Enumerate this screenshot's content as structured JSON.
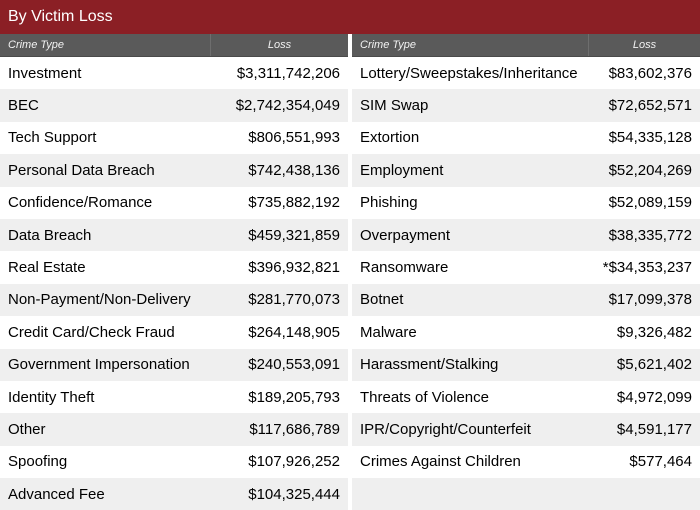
{
  "title": "By Victim Loss",
  "headers": {
    "crime_type": "Crime Type",
    "loss": "Loss"
  },
  "left_table": [
    {
      "type": "Investment",
      "loss": "$3,311,742,206"
    },
    {
      "type": "BEC",
      "loss": "$2,742,354,049"
    },
    {
      "type": "Tech Support",
      "loss": "$806,551,993"
    },
    {
      "type": "Personal Data Breach",
      "loss": "$742,438,136"
    },
    {
      "type": "Confidence/Romance",
      "loss": "$735,882,192"
    },
    {
      "type": "Data Breach",
      "loss": "$459,321,859"
    },
    {
      "type": "Real Estate",
      "loss": "$396,932,821"
    },
    {
      "type": "Non-Payment/Non-Delivery",
      "loss": "$281,770,073"
    },
    {
      "type": "Credit Card/Check Fraud",
      "loss": "$264,148,905"
    },
    {
      "type": "Government Impersonation",
      "loss": "$240,553,091"
    },
    {
      "type": "Identity Theft",
      "loss": "$189,205,793"
    },
    {
      "type": "Other",
      "loss": "$117,686,789"
    },
    {
      "type": "Spoofing",
      "loss": "$107,926,252"
    },
    {
      "type": "Advanced Fee",
      "loss": "$104,325,444"
    }
  ],
  "right_table": [
    {
      "type": "Lottery/Sweepstakes/Inheritance",
      "loss": "$83,602,376"
    },
    {
      "type": "SIM Swap",
      "loss": "$72,652,571"
    },
    {
      "type": "Extortion",
      "loss": "$54,335,128"
    },
    {
      "type": "Employment",
      "loss": "$52,204,269"
    },
    {
      "type": "Phishing",
      "loss": "$52,089,159"
    },
    {
      "type": "Overpayment",
      "loss": "$38,335,772"
    },
    {
      "type": "Ransomware",
      "loss": "*$34,353,237"
    },
    {
      "type": "Botnet",
      "loss": "$17,099,378"
    },
    {
      "type": "Malware",
      "loss": "$9,326,482"
    },
    {
      "type": "Harassment/Stalking",
      "loss": "$5,621,402"
    },
    {
      "type": "Threats of Violence",
      "loss": "$4,972,099"
    },
    {
      "type": "IPR/Copyright/Counterfeit",
      "loss": "$4,591,177"
    },
    {
      "type": "Crimes Against Children",
      "loss": "$577,464"
    }
  ]
}
